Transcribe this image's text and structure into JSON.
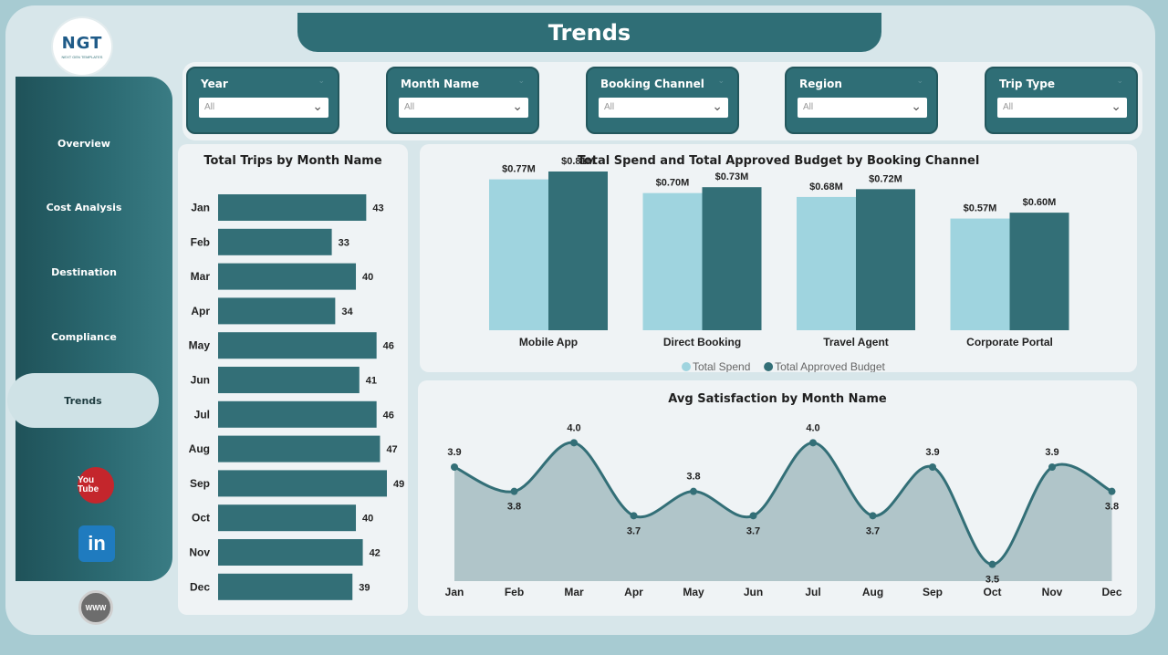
{
  "header": {
    "title": "Trends"
  },
  "logo": {
    "mark": "NGT",
    "sub": "NEXT GEN TEMPLATES"
  },
  "sidebar": {
    "items": [
      {
        "label": "Overview",
        "active": false
      },
      {
        "label": "Cost Analysis",
        "active": false
      },
      {
        "label": "Destination",
        "active": false
      },
      {
        "label": "Compliance",
        "active": false
      },
      {
        "label": "Trends",
        "active": true
      }
    ],
    "social": {
      "youtube": "You Tube",
      "linkedin": "in",
      "web": "WWW"
    }
  },
  "filters": [
    {
      "label": "Year",
      "value": "All"
    },
    {
      "label": "Month Name",
      "value": "All"
    },
    {
      "label": "Booking Channel",
      "value": "All"
    },
    {
      "label": "Region",
      "value": "All"
    },
    {
      "label": "Trip Type",
      "value": "All"
    }
  ],
  "charts": {
    "trips": {
      "title": "Total Trips by Month Name"
    },
    "spend": {
      "title": "Total Spend and Total Approved Budget by Booking Channel"
    },
    "satisfaction": {
      "title": "Avg Satisfaction by Month Name"
    }
  },
  "chart_data": [
    {
      "type": "bar",
      "orientation": "horizontal",
      "title": "Total Trips by Month Name",
      "categories": [
        "Jan",
        "Feb",
        "Mar",
        "Apr",
        "May",
        "Jun",
        "Jul",
        "Aug",
        "Sep",
        "Oct",
        "Nov",
        "Dec"
      ],
      "values": [
        43,
        33,
        40,
        34,
        46,
        41,
        46,
        47,
        49,
        40,
        42,
        39
      ],
      "color": "#336f77"
    },
    {
      "type": "bar",
      "title": "Total Spend and Total Approved Budget by Booking Channel",
      "categories": [
        "Mobile App",
        "Direct Booking",
        "Travel Agent",
        "Corporate Portal"
      ],
      "series": [
        {
          "name": "Total Spend",
          "values": [
            0.77,
            0.7,
            0.68,
            0.57
          ],
          "labels": [
            "$0.77M",
            "$0.70M",
            "$0.68M",
            "$0.57M"
          ],
          "color": "#9fd4df"
        },
        {
          "name": "Total Approved Budget",
          "values": [
            0.81,
            0.73,
            0.72,
            0.6
          ],
          "labels": [
            "$0.81M",
            "$0.73M",
            "$0.72M",
            "$0.60M"
          ],
          "color": "#336f77"
        }
      ],
      "legend": "bottom"
    },
    {
      "type": "area",
      "title": "Avg Satisfaction by Month Name",
      "categories": [
        "Jan",
        "Feb",
        "Mar",
        "Apr",
        "May",
        "Jun",
        "Jul",
        "Aug",
        "Sep",
        "Oct",
        "Nov",
        "Dec"
      ],
      "values": [
        3.9,
        3.8,
        4.0,
        3.7,
        3.8,
        3.7,
        4.0,
        3.7,
        3.9,
        3.5,
        3.9,
        3.8
      ],
      "line_color": "#336f77",
      "fill_color": "#a9c0c4"
    }
  ]
}
